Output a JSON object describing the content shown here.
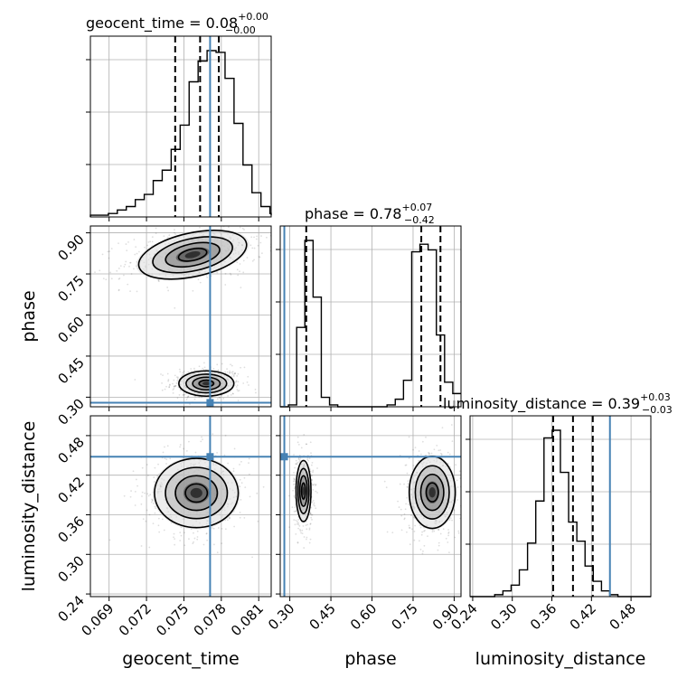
{
  "colors": {
    "truth": "#4682b4",
    "line": "#000000",
    "grid": "#b0b0b0",
    "background": "#ffffff"
  },
  "chart_data": {
    "type": "corner",
    "parameters": [
      "geocent_time",
      "phase",
      "luminosity_distance"
    ],
    "ranges": {
      "geocent_time": [
        0.0675,
        0.082
      ],
      "phase": [
        0.265,
        0.925
      ],
      "luminosity_distance": [
        0.236,
        0.51
      ]
    },
    "ticks": {
      "geocent_time": [
        "0.069",
        "0.072",
        "0.075",
        "0.078",
        "0.081"
      ],
      "phase": [
        "0.30",
        "0.45",
        "0.60",
        "0.75",
        "0.90"
      ],
      "luminosity_distance": [
        "0.24",
        "0.30",
        "0.36",
        "0.42",
        "0.48"
      ]
    },
    "truths": {
      "geocent_time": 0.0771,
      "phase": 0.28,
      "luminosity_distance": 0.448
    },
    "titles": {
      "geocent_time": {
        "label": "geocent_time = 0.08",
        "upper": "+0.00",
        "lower": "−0.00"
      },
      "phase": {
        "label": "phase = 0.78",
        "upper": "+0.07",
        "lower": "−0.42"
      },
      "luminosity_distance": {
        "label": "luminosity_distance = 0.39",
        "upper": "+0.03",
        "lower": "−0.03"
      }
    },
    "quantiles": {
      "geocent_time": [
        0.0743,
        0.0763,
        0.0778
      ],
      "phase": [
        0.36,
        0.78,
        0.85
      ],
      "luminosity_distance": [
        0.362,
        0.392,
        0.422
      ]
    },
    "marginals": {
      "geocent_time": {
        "edges_start": 0.0675,
        "bin_width": 0.00072,
        "counts": [
          1,
          1,
          2,
          4,
          6,
          10,
          13,
          21,
          27,
          39,
          53,
          78,
          90,
          96,
          95,
          80,
          54,
          30,
          14,
          6,
          2,
          1
        ]
      },
      "phase": {
        "edges_start": 0.265,
        "bin_width": 0.03,
        "counts": [
          0,
          1,
          42,
          88,
          58,
          5,
          1,
          0,
          0,
          0,
          0,
          0,
          0,
          1,
          4,
          14,
          82,
          86,
          83,
          38,
          13,
          7
        ]
      },
      "luminosity_distance": {
        "edges_start": 0.236,
        "bin_width": 0.01245,
        "counts": [
          0,
          0,
          0,
          1,
          3,
          6,
          14,
          28,
          50,
          83,
          87,
          65,
          39,
          29,
          16,
          8,
          3,
          1,
          0,
          0,
          0,
          0
        ]
      }
    },
    "joint_modes": {
      "phase_vs_geocent_time": [
        {
          "x": 0.0768,
          "y": 0.35,
          "sx": 0.00105,
          "sy": 0.022,
          "rho": 0.0,
          "levels": [
            0.008,
            0.018,
            0.028,
            0.038
          ]
        },
        {
          "x": 0.0757,
          "y": 0.82,
          "sx": 0.0021,
          "sy": 0.038,
          "rho": 0.35,
          "levels": [
            0.008,
            0.018,
            0.028,
            0.038
          ]
        }
      ],
      "luminosity_distance_vs_geocent_time": [
        {
          "x": 0.076,
          "y": 0.393,
          "sx": 0.0016,
          "sy": 0.025,
          "rho": 0.0,
          "levels": [
            0.008,
            0.018,
            0.028,
            0.038
          ]
        }
      ],
      "luminosity_distance_vs_phase": [
        {
          "x": 0.35,
          "y": 0.396,
          "sx": 0.013,
          "sy": 0.022,
          "rho": 0.0,
          "levels": [
            0.008,
            0.018,
            0.028,
            0.038
          ]
        },
        {
          "x": 0.82,
          "y": 0.394,
          "sx": 0.04,
          "sy": 0.026,
          "rho": 0.0,
          "levels": [
            0.008,
            0.018,
            0.028,
            0.038
          ]
        }
      ]
    },
    "grid": true
  }
}
